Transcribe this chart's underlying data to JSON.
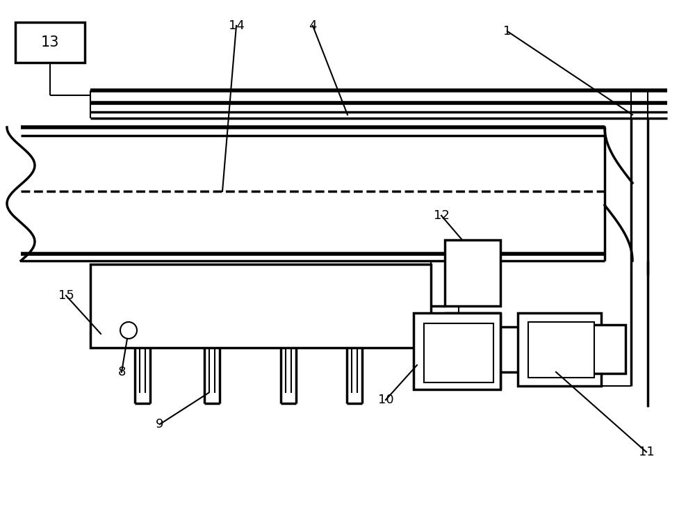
{
  "bg": "#ffffff",
  "lc": "#000000",
  "lw1": 1.5,
  "lw2": 2.5,
  "lw3": 4.0,
  "fs": 13
}
